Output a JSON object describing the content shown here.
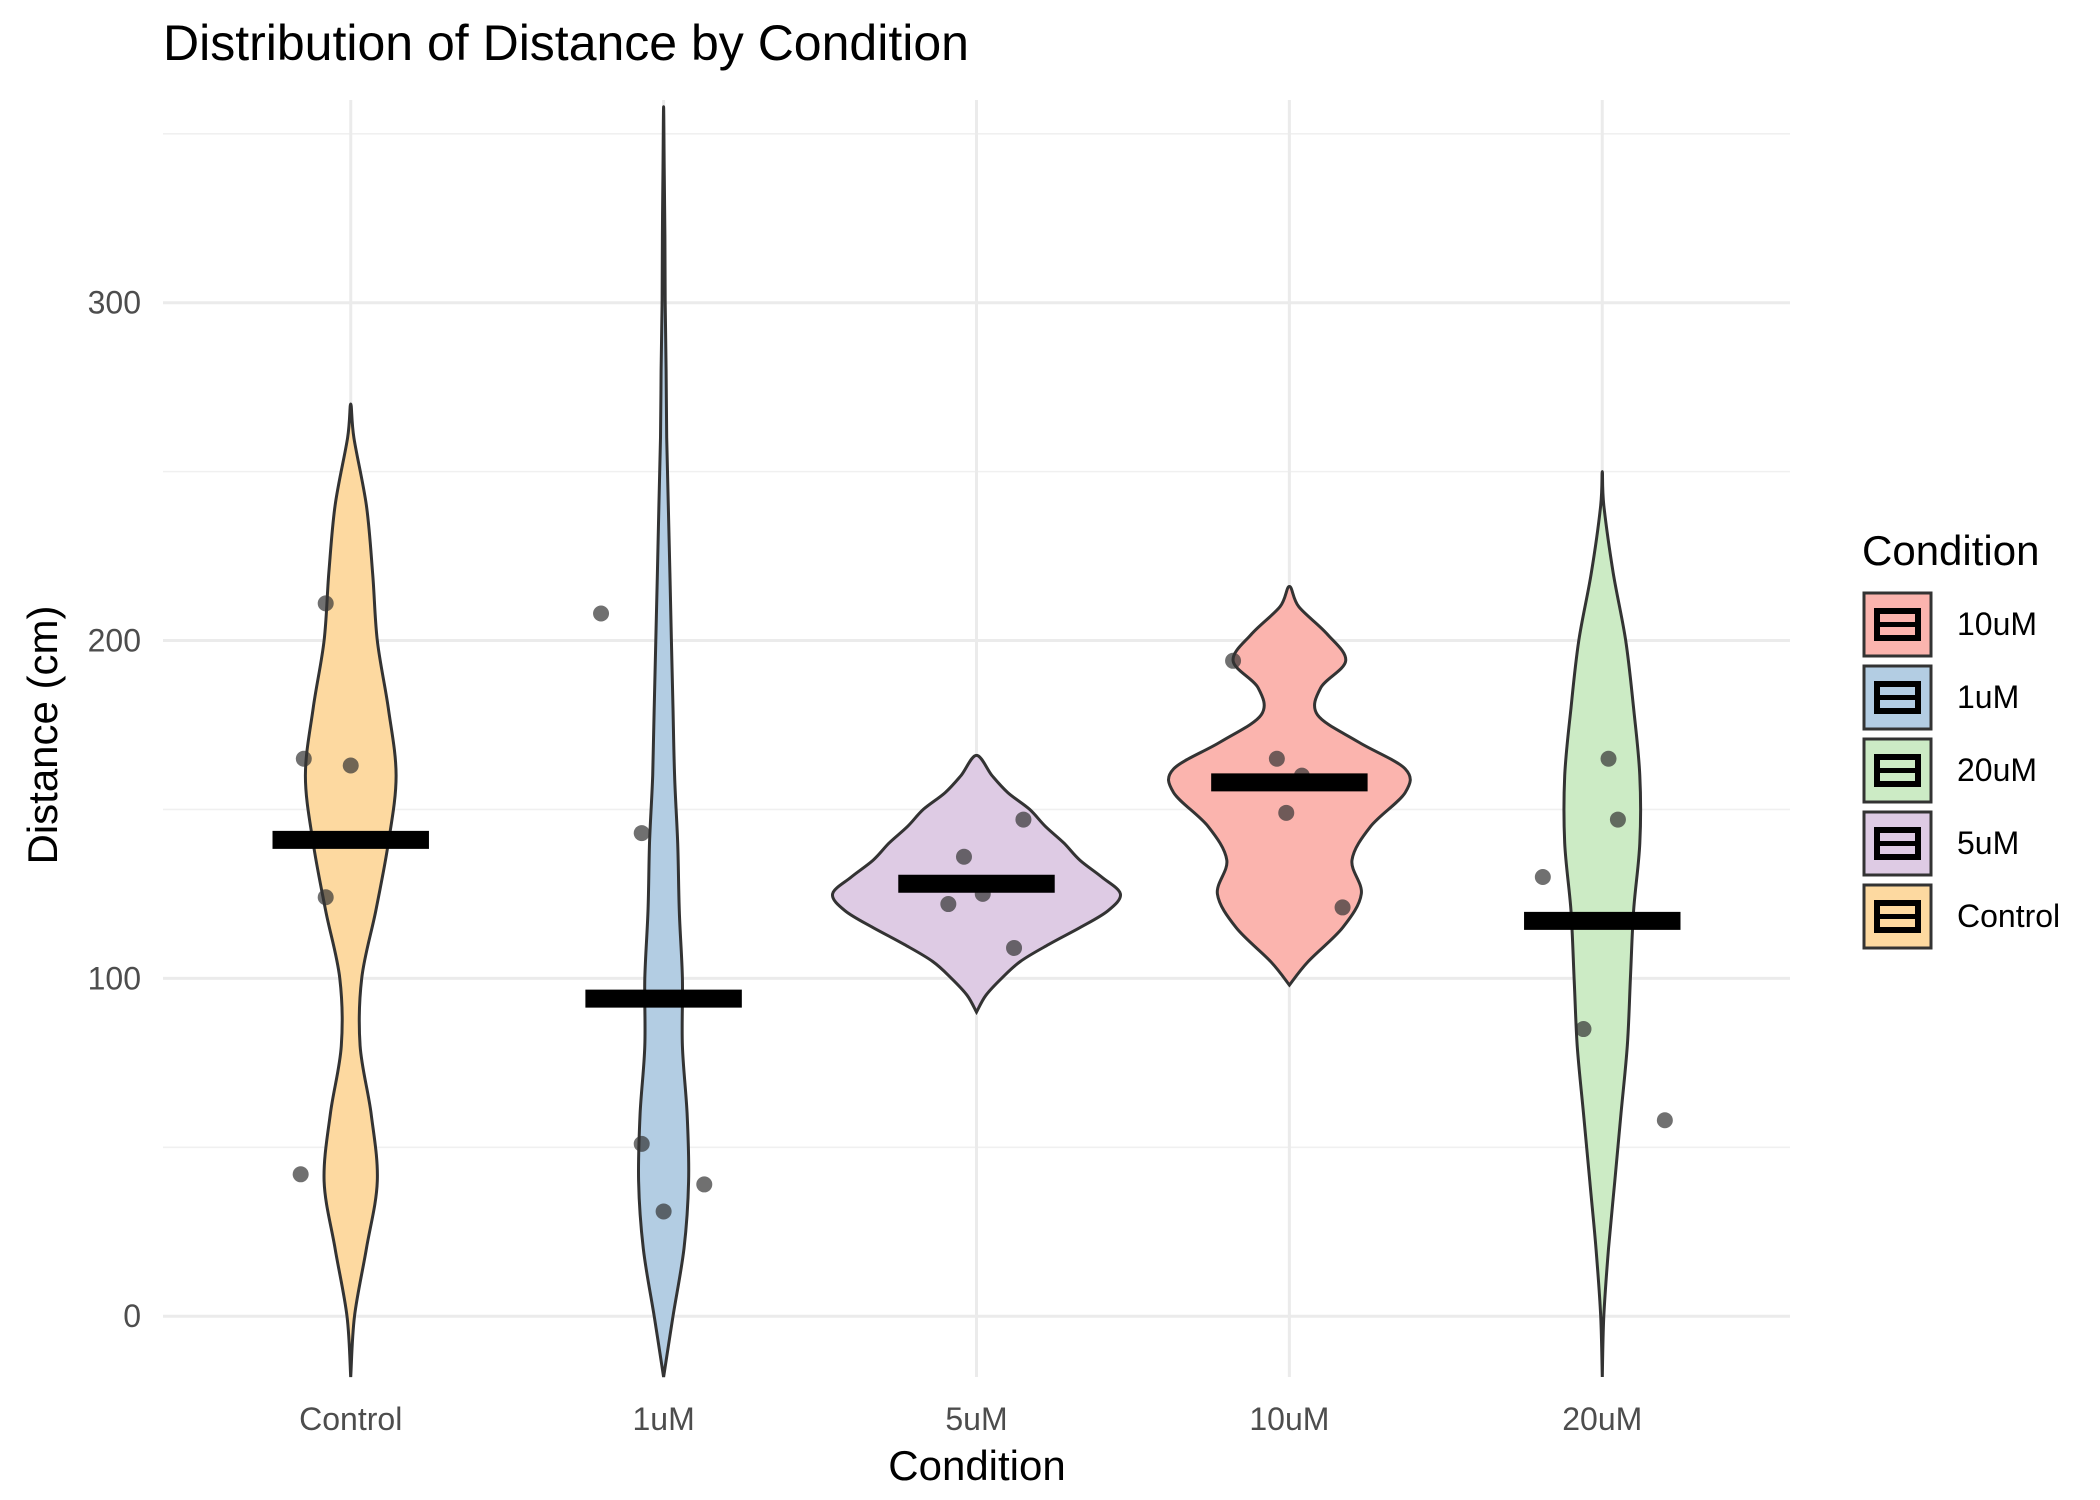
{
  "chart_data": {
    "type": "violin",
    "title": "Distribution of Distance by Condition",
    "xlabel": "Condition",
    "ylabel": "Distance (cm)",
    "categories": [
      "Control",
      "1uM",
      "5uM",
      "10uM",
      "20uM"
    ],
    "ylim": [
      -18,
      360
    ],
    "yticks": [
      0,
      100,
      200,
      300
    ],
    "grid": true,
    "legend": {
      "title": "Condition",
      "position": "right",
      "entries": [
        "10uM",
        "1uM",
        "20uM",
        "5uM",
        "Control"
      ]
    },
    "colors": {
      "Control": "#fdd9a0",
      "1uM": "#b3cde3",
      "5uM": "#decbe4",
      "10uM": "#fbb4ae",
      "20uM": "#ccebc5",
      "outline": "#333333",
      "mean_bar": "#000000",
      "point": "#333333"
    },
    "groups": [
      {
        "name": "Control",
        "mean": 141,
        "points": [
          [
            -0.16,
            42
          ],
          [
            -0.15,
            165
          ],
          [
            -0.08,
            124
          ],
          [
            -0.08,
            211
          ],
          [
            0.0,
            163
          ]
        ],
        "violin": [
          [
            -18,
            0
          ],
          [
            0,
            0.012
          ],
          [
            20,
            0.05
          ],
          [
            40,
            0.085
          ],
          [
            60,
            0.065
          ],
          [
            80,
            0.03
          ],
          [
            100,
            0.035
          ],
          [
            120,
            0.08
          ],
          [
            140,
            0.12
          ],
          [
            160,
            0.145
          ],
          [
            180,
            0.12
          ],
          [
            200,
            0.085
          ],
          [
            220,
            0.07
          ],
          [
            240,
            0.05
          ],
          [
            260,
            0.01
          ],
          [
            270,
            0
          ]
        ]
      },
      {
        "name": "1uM",
        "mean": 94,
        "points": [
          [
            -0.2,
            208
          ],
          [
            -0.07,
            51
          ],
          [
            -0.07,
            143
          ],
          [
            0.0,
            31
          ],
          [
            0.13,
            39
          ]
        ],
        "violin": [
          [
            -18,
            0
          ],
          [
            0,
            0.03
          ],
          [
            20,
            0.065
          ],
          [
            40,
            0.08
          ],
          [
            60,
            0.075
          ],
          [
            80,
            0.06
          ],
          [
            100,
            0.06
          ],
          [
            120,
            0.05
          ],
          [
            140,
            0.045
          ],
          [
            160,
            0.035
          ],
          [
            180,
            0.03
          ],
          [
            200,
            0.025
          ],
          [
            220,
            0.02
          ],
          [
            240,
            0.015
          ],
          [
            260,
            0.01
          ],
          [
            280,
            0.008
          ],
          [
            300,
            0.005
          ],
          [
            320,
            0.004
          ],
          [
            340,
            0.002
          ],
          [
            358,
            0
          ]
        ]
      },
      {
        "name": "5uM",
        "mean": 128,
        "points": [
          [
            -0.09,
            122
          ],
          [
            -0.04,
            136
          ],
          [
            0.02,
            125
          ],
          [
            0.12,
            109
          ],
          [
            0.15,
            147
          ]
        ],
        "violin": [
          [
            90,
            0
          ],
          [
            95,
            0.03
          ],
          [
            100,
            0.08
          ],
          [
            105,
            0.14
          ],
          [
            110,
            0.23
          ],
          [
            115,
            0.33
          ],
          [
            120,
            0.42
          ],
          [
            125,
            0.46
          ],
          [
            130,
            0.4
          ],
          [
            135,
            0.33
          ],
          [
            140,
            0.28
          ],
          [
            145,
            0.22
          ],
          [
            150,
            0.17
          ],
          [
            155,
            0.1
          ],
          [
            160,
            0.05
          ],
          [
            166,
            0
          ]
        ]
      },
      {
        "name": "10uM",
        "mean": 158,
        "points": [
          [
            -0.18,
            194
          ],
          [
            -0.04,
            165
          ],
          [
            -0.01,
            149
          ],
          [
            0.04,
            160
          ],
          [
            0.17,
            121
          ]
        ],
        "violin": [
          [
            98,
            0
          ],
          [
            105,
            0.06
          ],
          [
            115,
            0.17
          ],
          [
            125,
            0.23
          ],
          [
            135,
            0.2
          ],
          [
            145,
            0.26
          ],
          [
            155,
            0.37
          ],
          [
            162,
            0.37
          ],
          [
            170,
            0.22
          ],
          [
            178,
            0.09
          ],
          [
            186,
            0.1
          ],
          [
            194,
            0.18
          ],
          [
            202,
            0.12
          ],
          [
            210,
            0.03
          ],
          [
            216,
            0
          ]
        ]
      },
      {
        "name": "20uM",
        "mean": 117,
        "points": [
          [
            -0.19,
            130
          ],
          [
            -0.06,
            85
          ],
          [
            0.02,
            165
          ],
          [
            0.05,
            147
          ],
          [
            0.2,
            58
          ]
        ],
        "violin": [
          [
            -18,
            0
          ],
          [
            0,
            0.005
          ],
          [
            20,
            0.02
          ],
          [
            40,
            0.04
          ],
          [
            60,
            0.06
          ],
          [
            80,
            0.08
          ],
          [
            100,
            0.09
          ],
          [
            120,
            0.1
          ],
          [
            140,
            0.12
          ],
          [
            160,
            0.12
          ],
          [
            180,
            0.1
          ],
          [
            200,
            0.075
          ],
          [
            220,
            0.035
          ],
          [
            240,
            0.005
          ],
          [
            250,
            0
          ]
        ]
      }
    ]
  }
}
